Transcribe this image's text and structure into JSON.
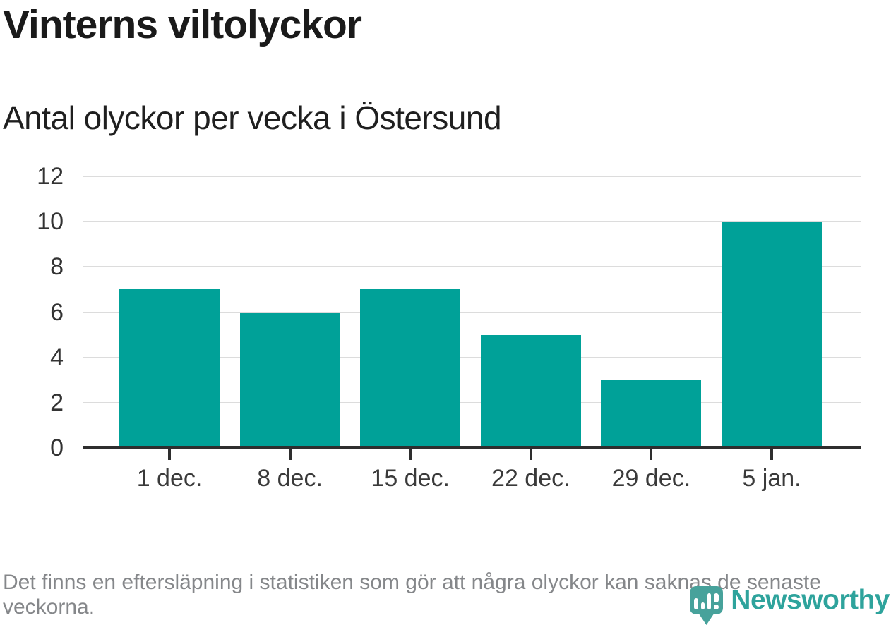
{
  "header": {
    "title": "Vinterns viltolyckor",
    "subtitle": "Antal olyckor per vecka i Östersund"
  },
  "chart_data": {
    "type": "bar",
    "categories": [
      "1 dec.",
      "8 dec.",
      "15 dec.",
      "22 dec.",
      "29 dec.",
      "5 jan."
    ],
    "values": [
      7,
      6,
      7,
      5,
      3,
      10
    ],
    "title": "Vinterns viltolyckor",
    "subtitle": "Antal olyckor per vecka i Östersund",
    "xlabel": "",
    "ylabel": "",
    "ylim": [
      0,
      12
    ],
    "yticks": [
      0,
      2,
      4,
      6,
      8,
      10,
      12
    ],
    "grid": true,
    "legend": false
  },
  "footer": {
    "note": "Det finns en eftersläpning i statistiken som gör att några olyckor kan saknas de senaste veckorna."
  },
  "brand": {
    "name": "Newsworthy",
    "logo_icon": "bar-chart-speech-bubble-icon"
  },
  "colors": {
    "bar": "#00a198",
    "title_text": "#1a1a1a",
    "axis_text": "#333333",
    "gridline": "#dcdcdc",
    "axis_line": "#2e2e2e",
    "note_text": "#85878a",
    "brand_teal": "#2ea39c",
    "brand_icon": "#47a29b"
  }
}
